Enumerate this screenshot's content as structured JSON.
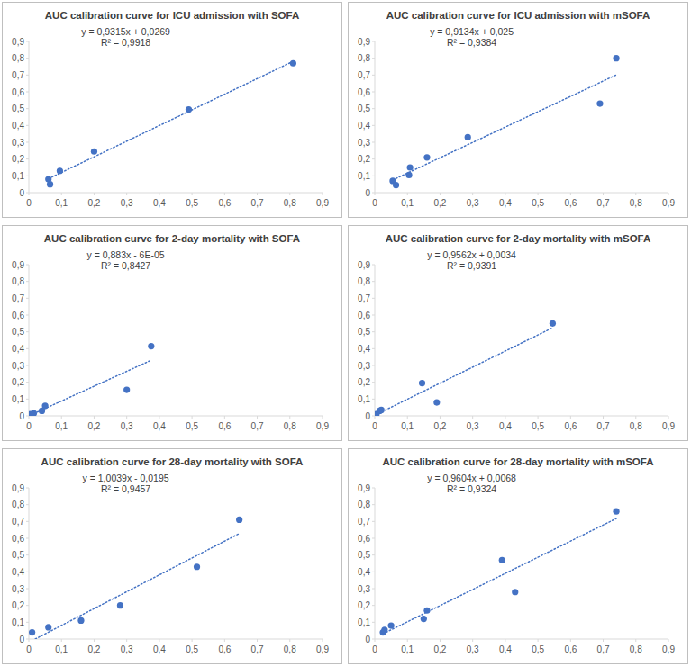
{
  "chart_data": [
    {
      "type": "scatter",
      "title": "AUC calibration curve for ICU admission with SOFA",
      "x": [
        0.06,
        0.065,
        0.095,
        0.2,
        0.49,
        0.81
      ],
      "values": [
        0.08,
        0.05,
        0.13,
        0.245,
        0.495,
        0.77
      ],
      "color": "#4472c4",
      "marker": "circle",
      "trendline": {
        "slope": 0.9315,
        "intercept": 0.0269
      },
      "annotations": [
        "y = 0,9315x + 0,0269",
        "R² = 0,9918"
      ],
      "xlim": [
        0,
        0.9
      ],
      "ylim": [
        0,
        0.9
      ],
      "xticks": [
        0,
        {
          "value": 0.1,
          "label": "0,1"
        },
        {
          "value": 0.2,
          "label": "0,2"
        },
        {
          "value": 0.3,
          "label": "0,3"
        },
        {
          "value": 0.4,
          "label": "0,4"
        },
        {
          "value": 0.5,
          "label": "0,5"
        },
        {
          "value": 0.6,
          "label": "0,6"
        },
        {
          "value": 0.7,
          "label": "0,7"
        },
        {
          "value": 0.8,
          "label": "0,8"
        },
        {
          "value": 0.9,
          "label": "0,9"
        }
      ],
      "yticks": [
        0,
        {
          "value": 0.1,
          "label": "0,1"
        },
        {
          "value": 0.2,
          "label": "0,2"
        },
        {
          "value": 0.3,
          "label": "0,3"
        },
        {
          "value": 0.4,
          "label": "0,4"
        },
        {
          "value": 0.5,
          "label": "0,5"
        },
        {
          "value": 0.6,
          "label": "0,6"
        },
        {
          "value": 0.7,
          "label": "0,7"
        },
        {
          "value": 0.8,
          "label": "0,8"
        },
        {
          "value": 0.9,
          "label": "0,9"
        }
      ],
      "grid": false
    },
    {
      "type": "scatter",
      "title": "AUC calibration curve for ICU admission with mSOFA",
      "x": [
        0.055,
        0.065,
        0.105,
        0.108,
        0.16,
        0.285,
        0.69,
        0.74
      ],
      "values": [
        0.07,
        0.045,
        0.105,
        0.15,
        0.21,
        0.33,
        0.53,
        0.8
      ],
      "color": "#4472c4",
      "marker": "circle",
      "trendline": {
        "slope": 0.9134,
        "intercept": 0.025
      },
      "annotations": [
        "y = 0,9134x + 0,025",
        "R² = 0,9384"
      ],
      "xlim": [
        0,
        0.9
      ],
      "ylim": [
        0,
        0.9
      ],
      "xticks": [
        0,
        {
          "value": 0.1,
          "label": "0,1"
        },
        {
          "value": 0.2,
          "label": "0,2"
        },
        {
          "value": 0.3,
          "label": "0,3"
        },
        {
          "value": 0.4,
          "label": "0,4"
        },
        {
          "value": 0.5,
          "label": "0,5"
        },
        {
          "value": 0.6,
          "label": "0,6"
        },
        {
          "value": 0.7,
          "label": "0,7"
        },
        {
          "value": 0.8,
          "label": "0,8"
        },
        {
          "value": 0.9,
          "label": "0,9"
        }
      ],
      "yticks": [
        0,
        {
          "value": 0.1,
          "label": "0,1"
        },
        {
          "value": 0.2,
          "label": "0,2"
        },
        {
          "value": 0.3,
          "label": "0,3"
        },
        {
          "value": 0.4,
          "label": "0,4"
        },
        {
          "value": 0.5,
          "label": "0,5"
        },
        {
          "value": 0.6,
          "label": "0,6"
        },
        {
          "value": 0.7,
          "label": "0,7"
        },
        {
          "value": 0.8,
          "label": "0,8"
        },
        {
          "value": 0.9,
          "label": "0,9"
        }
      ],
      "grid": false
    },
    {
      "type": "scatter",
      "title": "AUC calibration curve for 2-day mortality with SOFA",
      "x": [
        0.005,
        0.015,
        0.04,
        0.05,
        0.3,
        0.375
      ],
      "values": [
        0.01,
        0.015,
        0.03,
        0.06,
        0.155,
        0.415
      ],
      "color": "#4472c4",
      "marker": "circle",
      "trendline": {
        "slope": 0.883,
        "intercept": -6e-05
      },
      "annotations": [
        "y = 0,883x - 6E-05",
        "R² = 0,8427"
      ],
      "xlim": [
        0,
        0.9
      ],
      "ylim": [
        0,
        0.9
      ],
      "xticks": [
        0,
        {
          "value": 0.1,
          "label": "0,1"
        },
        {
          "value": 0.2,
          "label": "0,2"
        },
        {
          "value": 0.3,
          "label": "0,3"
        },
        {
          "value": 0.4,
          "label": "0,4"
        },
        {
          "value": 0.5,
          "label": "0,5"
        },
        {
          "value": 0.6,
          "label": "0,6"
        },
        {
          "value": 0.7,
          "label": "0,7"
        },
        {
          "value": 0.8,
          "label": "0,8"
        },
        {
          "value": 0.9,
          "label": "0,9"
        }
      ],
      "yticks": [
        0,
        {
          "value": 0.1,
          "label": "0,1"
        },
        {
          "value": 0.2,
          "label": "0,2"
        },
        {
          "value": 0.3,
          "label": "0,3"
        },
        {
          "value": 0.4,
          "label": "0,4"
        },
        {
          "value": 0.5,
          "label": "0,5"
        },
        {
          "value": 0.6,
          "label": "0,6"
        },
        {
          "value": 0.7,
          "label": "0,7"
        },
        {
          "value": 0.8,
          "label": "0,8"
        },
        {
          "value": 0.9,
          "label": "0,9"
        }
      ],
      "grid": false
    },
    {
      "type": "scatter",
      "title": "AUC calibration curve for 2-day mortality with mSOFA",
      "x": [
        0.002,
        0.005,
        0.015,
        0.02,
        0.145,
        0.19,
        0.545
      ],
      "values": [
        0.005,
        0.01,
        0.03,
        0.035,
        0.195,
        0.08,
        0.55
      ],
      "color": "#4472c4",
      "marker": "circle",
      "trendline": {
        "slope": 0.9562,
        "intercept": 0.0034
      },
      "annotations": [
        "y = 0,9562x + 0,0034",
        "R² = 0,9391"
      ],
      "xlim": [
        0,
        0.9
      ],
      "ylim": [
        0,
        0.9
      ],
      "xticks": [
        0,
        {
          "value": 0.1,
          "label": "0,1"
        },
        {
          "value": 0.2,
          "label": "0,2"
        },
        {
          "value": 0.3,
          "label": "0,3"
        },
        {
          "value": 0.4,
          "label": "0,4"
        },
        {
          "value": 0.5,
          "label": "0,5"
        },
        {
          "value": 0.6,
          "label": "0,6"
        },
        {
          "value": 0.7,
          "label": "0,7"
        },
        {
          "value": 0.8,
          "label": "0,8"
        },
        {
          "value": 0.9,
          "label": "0,9"
        }
      ],
      "yticks": [
        0,
        {
          "value": 0.1,
          "label": "0,1"
        },
        {
          "value": 0.2,
          "label": "0,2"
        },
        {
          "value": 0.3,
          "label": "0,3"
        },
        {
          "value": 0.4,
          "label": "0,4"
        },
        {
          "value": 0.5,
          "label": "0,5"
        },
        {
          "value": 0.6,
          "label": "0,6"
        },
        {
          "value": 0.7,
          "label": "0,7"
        },
        {
          "value": 0.8,
          "label": "0,8"
        },
        {
          "value": 0.9,
          "label": "0,9"
        }
      ],
      "grid": false
    },
    {
      "type": "scatter",
      "title": "AUC calibration curve for 28-day mortality with SOFA",
      "x": [
        0.01,
        0.06,
        0.16,
        0.28,
        0.515,
        0.645
      ],
      "values": [
        0.04,
        0.07,
        0.11,
        0.2,
        0.43,
        0.71
      ],
      "color": "#4472c4",
      "marker": "circle",
      "trendline": {
        "slope": 1.0039,
        "intercept": -0.0195
      },
      "annotations": [
        "y = 1,0039x - 0,0195",
        "R² = 0,9457"
      ],
      "xlim": [
        0,
        0.9
      ],
      "ylim": [
        0,
        0.9
      ],
      "xticks": [
        0,
        {
          "value": 0.1,
          "label": "0,1"
        },
        {
          "value": 0.2,
          "label": "0,2"
        },
        {
          "value": 0.3,
          "label": "0,3"
        },
        {
          "value": 0.4,
          "label": "0,4"
        },
        {
          "value": 0.5,
          "label": "0,5"
        },
        {
          "value": 0.6,
          "label": "0,6"
        },
        {
          "value": 0.7,
          "label": "0,7"
        },
        {
          "value": 0.8,
          "label": "0,8"
        },
        {
          "value": 0.9,
          "label": "0,9"
        }
      ],
      "yticks": [
        0,
        {
          "value": 0.1,
          "label": "0,1"
        },
        {
          "value": 0.2,
          "label": "0,2"
        },
        {
          "value": 0.3,
          "label": "0,3"
        },
        {
          "value": 0.4,
          "label": "0,4"
        },
        {
          "value": 0.5,
          "label": "0,5"
        },
        {
          "value": 0.6,
          "label": "0,6"
        },
        {
          "value": 0.7,
          "label": "0,7"
        },
        {
          "value": 0.8,
          "label": "0,8"
        },
        {
          "value": 0.9,
          "label": "0,9"
        }
      ],
      "grid": false
    },
    {
      "type": "scatter",
      "title": "AUC calibration curve for 28-day mortality with mSOFA",
      "x": [
        0.025,
        0.03,
        0.05,
        0.15,
        0.16,
        0.39,
        0.43,
        0.74
      ],
      "values": [
        0.04,
        0.055,
        0.08,
        0.12,
        0.17,
        0.47,
        0.28,
        0.76
      ],
      "color": "#4472c4",
      "marker": "circle",
      "trendline": {
        "slope": 0.9604,
        "intercept": 0.0068
      },
      "annotations": [
        "y = 0,9604x + 0,0068",
        "R² = 0,9324"
      ],
      "xlim": [
        0,
        0.9
      ],
      "ylim": [
        0,
        0.9
      ],
      "xticks": [
        0,
        {
          "value": 0.1,
          "label": "0,1"
        },
        {
          "value": 0.2,
          "label": "0,2"
        },
        {
          "value": 0.3,
          "label": "0,3"
        },
        {
          "value": 0.4,
          "label": "0,4"
        },
        {
          "value": 0.5,
          "label": "0,5"
        },
        {
          "value": 0.6,
          "label": "0,6"
        },
        {
          "value": 0.7,
          "label": "0,7"
        },
        {
          "value": 0.8,
          "label": "0,8"
        },
        {
          "value": 0.9,
          "label": "0,9"
        }
      ],
      "yticks": [
        0,
        {
          "value": 0.1,
          "label": "0,1"
        },
        {
          "value": 0.2,
          "label": "0,2"
        },
        {
          "value": 0.3,
          "label": "0,3"
        },
        {
          "value": 0.4,
          "label": "0,4"
        },
        {
          "value": 0.5,
          "label": "0,5"
        },
        {
          "value": 0.6,
          "label": "0,6"
        },
        {
          "value": 0.7,
          "label": "0,7"
        },
        {
          "value": 0.8,
          "label": "0,8"
        },
        {
          "value": 0.9,
          "label": "0,9"
        }
      ],
      "grid": false
    }
  ]
}
